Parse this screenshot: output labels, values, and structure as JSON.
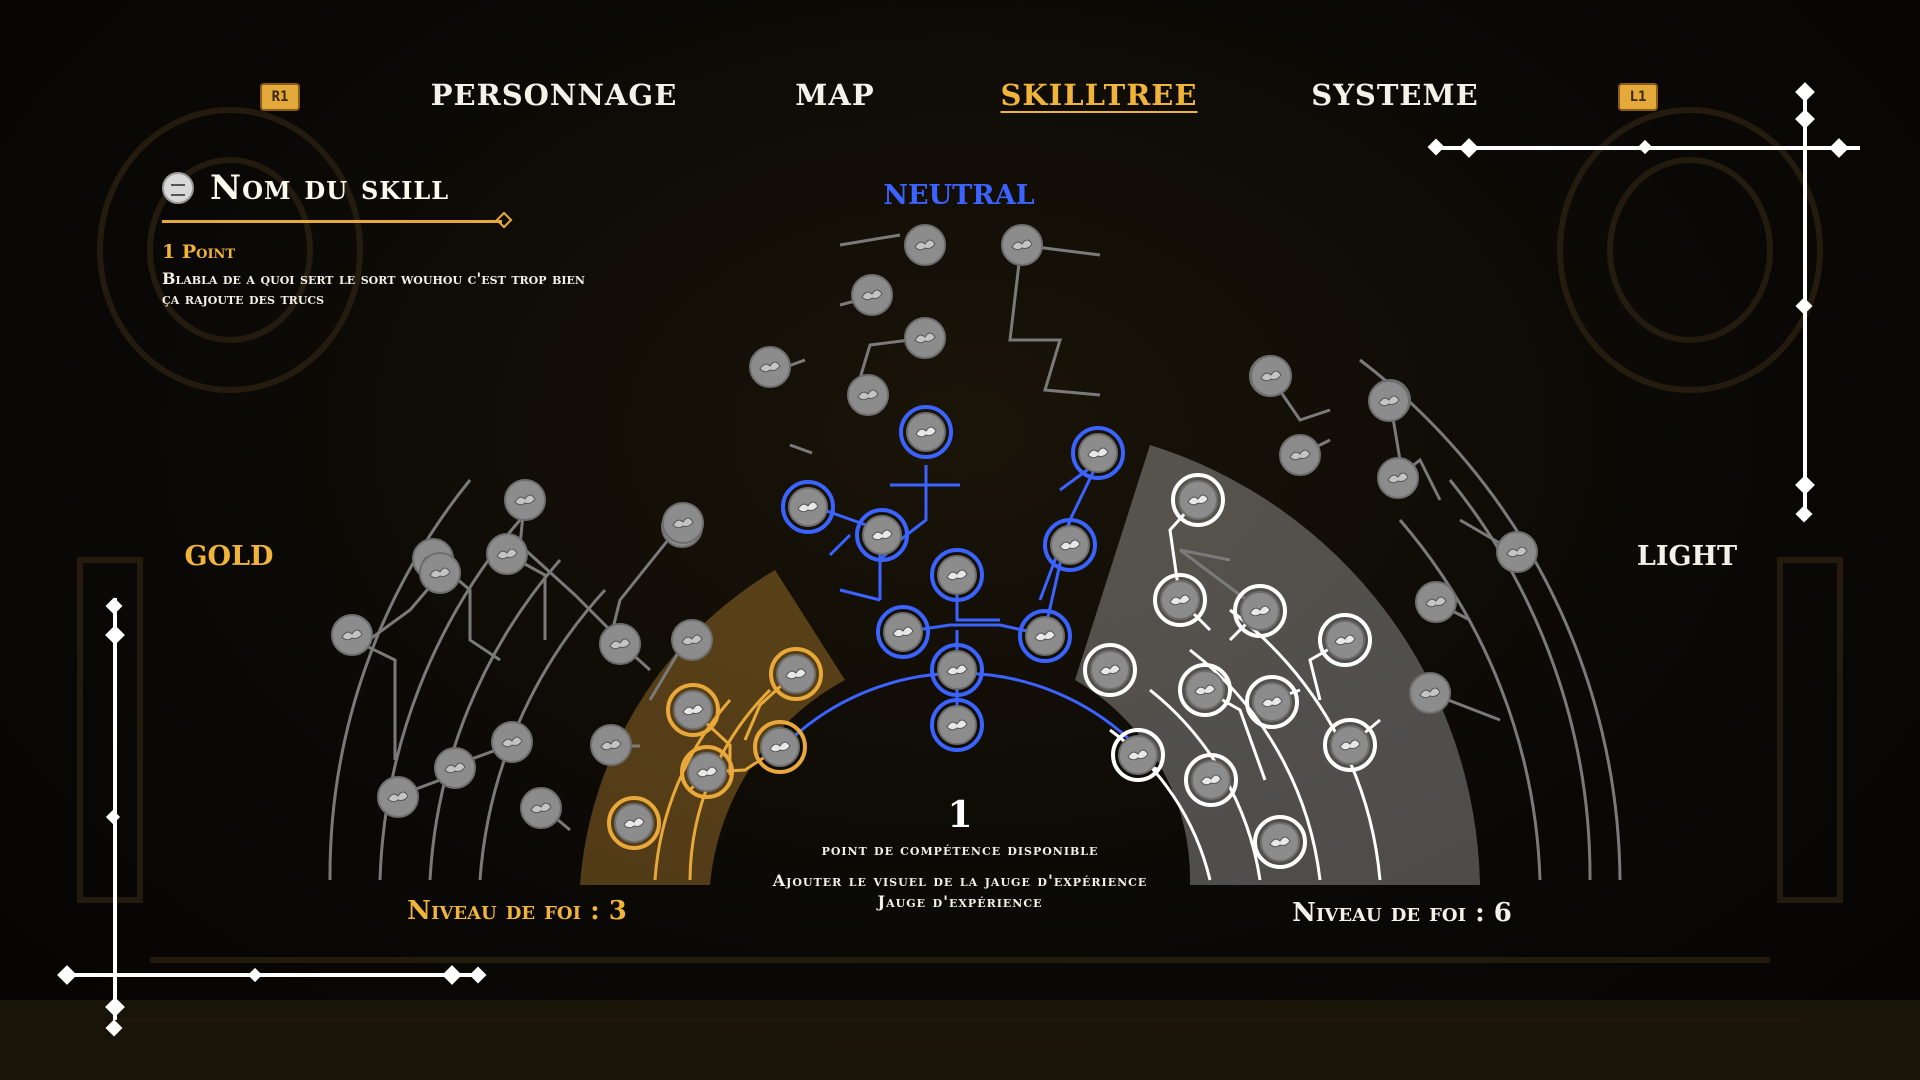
{
  "tabs": {
    "left_shoulder": "R1",
    "right_shoulder": "L1",
    "items": [
      {
        "label": "PERSONNAGE",
        "active": false
      },
      {
        "label": "MAP",
        "active": false
      },
      {
        "label": "SKILLTREE",
        "active": true
      },
      {
        "label": "SYSTEME",
        "active": false
      }
    ]
  },
  "skill": {
    "title": "Nom du skill",
    "cost": "1 Point",
    "description": "Blabla de a quoi sert le sort wouhou c'est trop bien ça rajoute des trucs"
  },
  "branches": {
    "gold": {
      "label": "GOLD",
      "faith": "Niveau de foi : 3"
    },
    "neutral": {
      "label": "NEUTRAL"
    },
    "light": {
      "label": "LIGHT",
      "faith": "Niveau de foi : 6"
    }
  },
  "points": {
    "count": "1",
    "label": "point de compétence disponible",
    "xp_line": "Ajouter le visuel de la jauge d'expérience",
    "xp_sub": "Jauge d'expérience"
  },
  "colors": {
    "gold": "#e8a93a",
    "neutral": "#3a63ff",
    "light": "#ffffff",
    "locked": "#8c8c8c",
    "tab_active": "#f0b43a"
  }
}
